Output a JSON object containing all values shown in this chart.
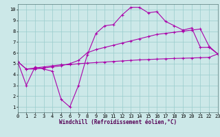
{
  "xlabel": "Windchill (Refroidissement éolien,°C)",
  "bg_color": "#cce8e8",
  "grid_color": "#99cccc",
  "line_color": "#aa00aa",
  "x_ticks": [
    0,
    1,
    2,
    3,
    4,
    5,
    6,
    7,
    8,
    9,
    10,
    11,
    12,
    13,
    14,
    15,
    16,
    17,
    18,
    19,
    20,
    21,
    22,
    23
  ],
  "y_ticks": [
    1,
    2,
    3,
    4,
    5,
    6,
    7,
    8,
    9,
    10
  ],
  "xlim": [
    0,
    23
  ],
  "ylim": [
    0.5,
    10.5
  ],
  "line1_y": [
    5.2,
    3.0,
    4.7,
    4.5,
    4.3,
    1.7,
    1.0,
    3.0,
    5.8,
    7.8,
    8.5,
    8.6,
    9.5,
    10.2,
    10.2,
    9.7,
    9.8,
    8.9,
    8.5,
    8.1,
    8.3,
    6.5,
    6.5,
    5.9
  ],
  "line2_y": [
    5.2,
    4.5,
    4.5,
    4.6,
    4.7,
    4.8,
    5.0,
    5.3,
    6.0,
    6.3,
    6.5,
    6.7,
    6.9,
    7.1,
    7.3,
    7.5,
    7.7,
    7.8,
    7.9,
    8.0,
    8.1,
    8.2,
    6.6,
    5.9
  ],
  "line3_y": [
    5.2,
    4.5,
    4.6,
    4.7,
    4.8,
    4.9,
    4.9,
    5.0,
    5.05,
    5.1,
    5.15,
    5.2,
    5.25,
    5.3,
    5.35,
    5.38,
    5.42,
    5.45,
    5.48,
    5.5,
    5.52,
    5.55,
    5.58,
    5.9
  ]
}
